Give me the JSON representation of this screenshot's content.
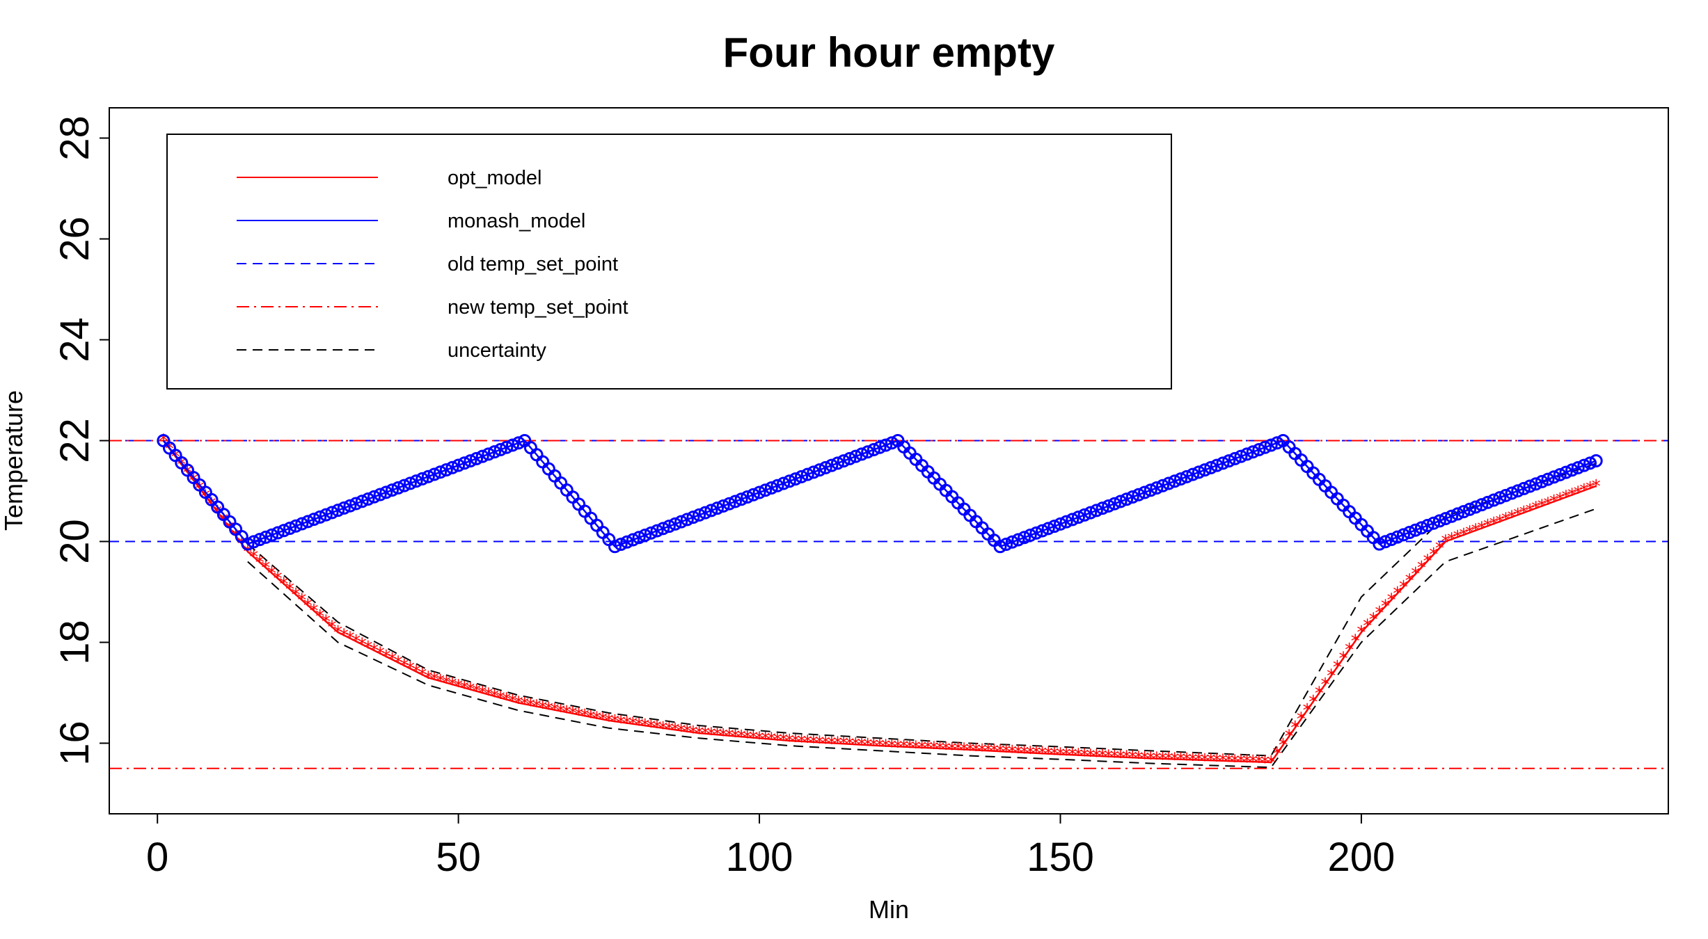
{
  "chart_data": {
    "type": "line",
    "title": "Four hour empty",
    "xlabel": "Min",
    "ylabel": "Temperature",
    "xlim": [
      -8,
      251
    ],
    "ylim": [
      14.6,
      28.6
    ],
    "x_ticks": [
      0,
      50,
      100,
      150,
      200
    ],
    "y_ticks": [
      16,
      18,
      20,
      22,
      24,
      26,
      28
    ],
    "grid": false,
    "legend_position": "top-left",
    "legend": [
      {
        "label": "opt_model",
        "color": "#ff0000",
        "style": "solid"
      },
      {
        "label": "monash_model",
        "color": "#0000ff",
        "style": "solid"
      },
      {
        "label": "old temp_set_point",
        "color": "#0000ff",
        "style": "dashed"
      },
      {
        "label": "new temp_set_point",
        "color": "#ff0000",
        "style": "dashdot"
      },
      {
        "label": "uncertainty",
        "color": "#000000",
        "style": "dashed"
      }
    ],
    "reference_lines": [
      {
        "name": "old temp_set_point",
        "y": [
          22,
          20
        ],
        "color": "#0000ff",
        "style": "dashed"
      },
      {
        "name": "new temp_set_point",
        "y": [
          22,
          15.5
        ],
        "color": "#ff0000",
        "style": "dashdot"
      }
    ],
    "series": [
      {
        "name": "opt_model",
        "color": "#ff0000",
        "marker": "star",
        "x": [
          1,
          15,
          30,
          45,
          60,
          75,
          90,
          105,
          120,
          135,
          150,
          165,
          185,
          200,
          214,
          239
        ],
        "y": [
          22.0,
          19.8,
          18.2,
          17.3,
          16.8,
          16.45,
          16.2,
          16.05,
          15.95,
          15.87,
          15.78,
          15.7,
          15.62,
          18.2,
          20.0,
          21.1
        ]
      },
      {
        "name": "monash_model",
        "color": "#0000ff",
        "marker": "circle",
        "x": [
          1,
          15,
          61,
          76,
          123,
          140,
          187,
          203,
          239
        ],
        "y": [
          22.0,
          19.95,
          22.0,
          19.9,
          22.0,
          19.9,
          22.0,
          19.95,
          21.6
        ]
      },
      {
        "name": "uncertainty upper",
        "color": "#000000",
        "style": "dashed",
        "x": [
          15,
          30,
          45,
          60,
          75,
          90,
          105,
          120,
          135,
          150,
          165,
          185,
          200,
          214,
          239
        ],
        "y": [
          19.95,
          18.4,
          17.45,
          16.95,
          16.6,
          16.35,
          16.2,
          16.1,
          16.0,
          15.93,
          15.85,
          15.75,
          18.9,
          20.5,
          21.55
        ]
      },
      {
        "name": "uncertainty lower",
        "color": "#000000",
        "style": "dashed",
        "x": [
          15,
          30,
          45,
          60,
          75,
          90,
          105,
          120,
          135,
          150,
          165,
          185,
          200,
          214,
          239
        ],
        "y": [
          19.6,
          18.0,
          17.15,
          16.65,
          16.3,
          16.1,
          15.95,
          15.85,
          15.75,
          15.68,
          15.6,
          15.52,
          18.0,
          19.6,
          20.65
        ]
      }
    ]
  }
}
